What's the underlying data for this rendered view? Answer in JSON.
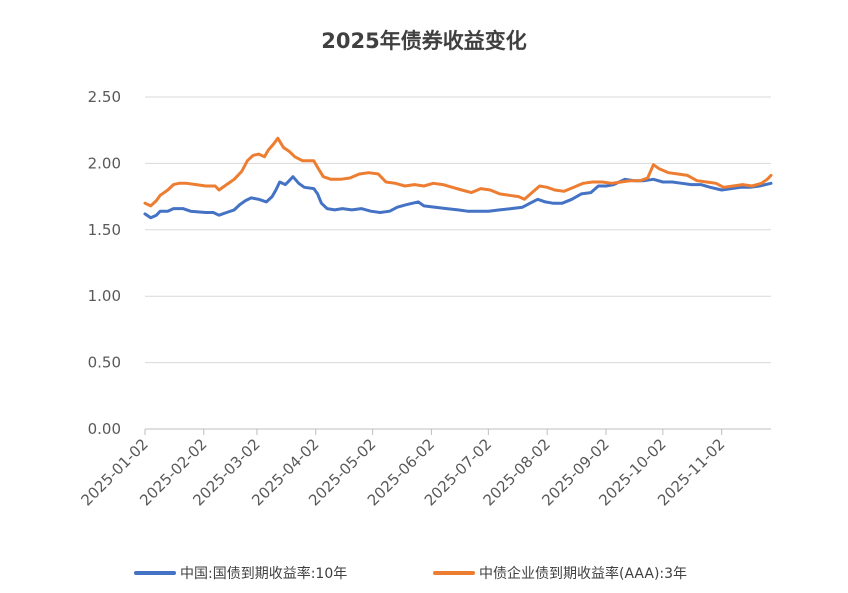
{
  "chart_data": {
    "type": "line",
    "title": "2025年债券收益变化",
    "xlabel": "",
    "ylabel": "",
    "ylim": [
      0,
      2.5
    ],
    "yticks": [
      "0.00",
      "0.50",
      "1.00",
      "1.50",
      "2.00",
      "2.50"
    ],
    "xlim": [
      "2025-01-02",
      "2025-11-28"
    ],
    "xticks": [
      "2025-01-02",
      "2025-02-02",
      "2025-03-02",
      "2025-04-02",
      "2025-05-02",
      "2025-06-02",
      "2025-07-02",
      "2025-08-02",
      "2025-09-02",
      "2025-10-02",
      "2025-11-02"
    ],
    "grid": true,
    "legend_position": "bottom",
    "series": [
      {
        "name": "中国:国债到期收益率:10年",
        "color": "#4472C4",
        "points": [
          [
            "2025-01-02",
            1.62
          ],
          [
            "2025-01-05",
            1.59
          ],
          [
            "2025-01-08",
            1.61
          ],
          [
            "2025-01-10",
            1.64
          ],
          [
            "2025-01-14",
            1.64
          ],
          [
            "2025-01-17",
            1.66
          ],
          [
            "2025-01-22",
            1.66
          ],
          [
            "2025-01-26",
            1.64
          ],
          [
            "2025-02-03",
            1.63
          ],
          [
            "2025-02-07",
            1.63
          ],
          [
            "2025-02-10",
            1.61
          ],
          [
            "2025-02-14",
            1.63
          ],
          [
            "2025-02-18",
            1.65
          ],
          [
            "2025-02-21",
            1.69
          ],
          [
            "2025-02-24",
            1.72
          ],
          [
            "2025-02-27",
            1.74
          ],
          [
            "2025-03-03",
            1.73
          ],
          [
            "2025-03-07",
            1.71
          ],
          [
            "2025-03-10",
            1.75
          ],
          [
            "2025-03-12",
            1.8
          ],
          [
            "2025-03-14",
            1.86
          ],
          [
            "2025-03-17",
            1.84
          ],
          [
            "2025-03-19",
            1.87
          ],
          [
            "2025-03-21",
            1.9
          ],
          [
            "2025-03-24",
            1.85
          ],
          [
            "2025-03-27",
            1.82
          ],
          [
            "2025-04-01",
            1.81
          ],
          [
            "2025-04-03",
            1.77
          ],
          [
            "2025-04-05",
            1.7
          ],
          [
            "2025-04-08",
            1.66
          ],
          [
            "2025-04-12",
            1.65
          ],
          [
            "2025-04-16",
            1.66
          ],
          [
            "2025-04-21",
            1.65
          ],
          [
            "2025-04-26",
            1.66
          ],
          [
            "2025-05-01",
            1.64
          ],
          [
            "2025-05-06",
            1.63
          ],
          [
            "2025-05-11",
            1.64
          ],
          [
            "2025-05-15",
            1.67
          ],
          [
            "2025-05-20",
            1.69
          ],
          [
            "2025-05-26",
            1.71
          ],
          [
            "2025-05-29",
            1.68
          ],
          [
            "2025-06-04",
            1.67
          ],
          [
            "2025-06-10",
            1.66
          ],
          [
            "2025-06-16",
            1.65
          ],
          [
            "2025-06-21",
            1.64
          ],
          [
            "2025-06-26",
            1.64
          ],
          [
            "2025-07-02",
            1.64
          ],
          [
            "2025-07-08",
            1.65
          ],
          [
            "2025-07-14",
            1.66
          ],
          [
            "2025-07-20",
            1.67
          ],
          [
            "2025-07-24",
            1.7
          ],
          [
            "2025-07-28",
            1.73
          ],
          [
            "2025-08-01",
            1.71
          ],
          [
            "2025-08-05",
            1.7
          ],
          [
            "2025-08-10",
            1.7
          ],
          [
            "2025-08-15",
            1.73
          ],
          [
            "2025-08-20",
            1.77
          ],
          [
            "2025-08-25",
            1.78
          ],
          [
            "2025-08-29",
            1.83
          ],
          [
            "2025-09-02",
            1.83
          ],
          [
            "2025-09-06",
            1.84
          ],
          [
            "2025-09-09",
            1.86
          ],
          [
            "2025-09-12",
            1.88
          ],
          [
            "2025-09-17",
            1.87
          ],
          [
            "2025-09-22",
            1.87
          ],
          [
            "2025-09-27",
            1.88
          ],
          [
            "2025-10-02",
            1.86
          ],
          [
            "2025-10-07",
            1.86
          ],
          [
            "2025-10-12",
            1.85
          ],
          [
            "2025-10-17",
            1.84
          ],
          [
            "2025-10-22",
            1.84
          ],
          [
            "2025-10-27",
            1.82
          ],
          [
            "2025-11-02",
            1.8
          ],
          [
            "2025-11-07",
            1.81
          ],
          [
            "2025-11-12",
            1.82
          ],
          [
            "2025-11-17",
            1.82
          ],
          [
            "2025-11-22",
            1.83
          ],
          [
            "2025-11-28",
            1.85
          ]
        ]
      },
      {
        "name": "中债企业债到期收益率(AAA):3年",
        "color": "#ED7D31",
        "points": [
          [
            "2025-01-02",
            1.7
          ],
          [
            "2025-01-05",
            1.68
          ],
          [
            "2025-01-08",
            1.72
          ],
          [
            "2025-01-10",
            1.76
          ],
          [
            "2025-01-14",
            1.8
          ],
          [
            "2025-01-17",
            1.84
          ],
          [
            "2025-01-20",
            1.85
          ],
          [
            "2025-01-24",
            1.85
          ],
          [
            "2025-01-29",
            1.84
          ],
          [
            "2025-02-03",
            1.83
          ],
          [
            "2025-02-08",
            1.83
          ],
          [
            "2025-02-10",
            1.8
          ],
          [
            "2025-02-14",
            1.84
          ],
          [
            "2025-02-18",
            1.88
          ],
          [
            "2025-02-22",
            1.94
          ],
          [
            "2025-02-25",
            2.02
          ],
          [
            "2025-02-28",
            2.06
          ],
          [
            "2025-03-03",
            2.07
          ],
          [
            "2025-03-06",
            2.05
          ],
          [
            "2025-03-08",
            2.1
          ],
          [
            "2025-03-11",
            2.15
          ],
          [
            "2025-03-13",
            2.19
          ],
          [
            "2025-03-16",
            2.12
          ],
          [
            "2025-03-19",
            2.09
          ],
          [
            "2025-03-22",
            2.05
          ],
          [
            "2025-03-26",
            2.02
          ],
          [
            "2025-04-01",
            2.02
          ],
          [
            "2025-04-03",
            1.97
          ],
          [
            "2025-04-06",
            1.9
          ],
          [
            "2025-04-10",
            1.88
          ],
          [
            "2025-04-15",
            1.88
          ],
          [
            "2025-04-20",
            1.89
          ],
          [
            "2025-04-25",
            1.92
          ],
          [
            "2025-04-30",
            1.93
          ],
          [
            "2025-05-05",
            1.92
          ],
          [
            "2025-05-09",
            1.86
          ],
          [
            "2025-05-14",
            1.85
          ],
          [
            "2025-05-19",
            1.83
          ],
          [
            "2025-05-24",
            1.84
          ],
          [
            "2025-05-29",
            1.83
          ],
          [
            "2025-06-03",
            1.85
          ],
          [
            "2025-06-08",
            1.84
          ],
          [
            "2025-06-13",
            1.82
          ],
          [
            "2025-06-18",
            1.8
          ],
          [
            "2025-06-23",
            1.78
          ],
          [
            "2025-06-28",
            1.81
          ],
          [
            "2025-07-03",
            1.8
          ],
          [
            "2025-07-08",
            1.77
          ],
          [
            "2025-07-13",
            1.76
          ],
          [
            "2025-07-18",
            1.75
          ],
          [
            "2025-07-21",
            1.73
          ],
          [
            "2025-07-25",
            1.78
          ],
          [
            "2025-07-29",
            1.83
          ],
          [
            "2025-08-02",
            1.82
          ],
          [
            "2025-08-06",
            1.8
          ],
          [
            "2025-08-11",
            1.79
          ],
          [
            "2025-08-16",
            1.82
          ],
          [
            "2025-08-21",
            1.85
          ],
          [
            "2025-08-26",
            1.86
          ],
          [
            "2025-08-31",
            1.86
          ],
          [
            "2025-09-05",
            1.85
          ],
          [
            "2025-09-10",
            1.86
          ],
          [
            "2025-09-15",
            1.87
          ],
          [
            "2025-09-20",
            1.87
          ],
          [
            "2025-09-24",
            1.89
          ],
          [
            "2025-09-27",
            1.99
          ],
          [
            "2025-09-30",
            1.96
          ],
          [
            "2025-10-05",
            1.93
          ],
          [
            "2025-10-10",
            1.92
          ],
          [
            "2025-10-15",
            1.91
          ],
          [
            "2025-10-20",
            1.87
          ],
          [
            "2025-10-25",
            1.86
          ],
          [
            "2025-10-30",
            1.85
          ],
          [
            "2025-11-03",
            1.82
          ],
          [
            "2025-11-08",
            1.83
          ],
          [
            "2025-11-13",
            1.84
          ],
          [
            "2025-11-18",
            1.83
          ],
          [
            "2025-11-23",
            1.85
          ],
          [
            "2025-11-26",
            1.88
          ],
          [
            "2025-11-28",
            1.91
          ]
        ]
      }
    ]
  }
}
